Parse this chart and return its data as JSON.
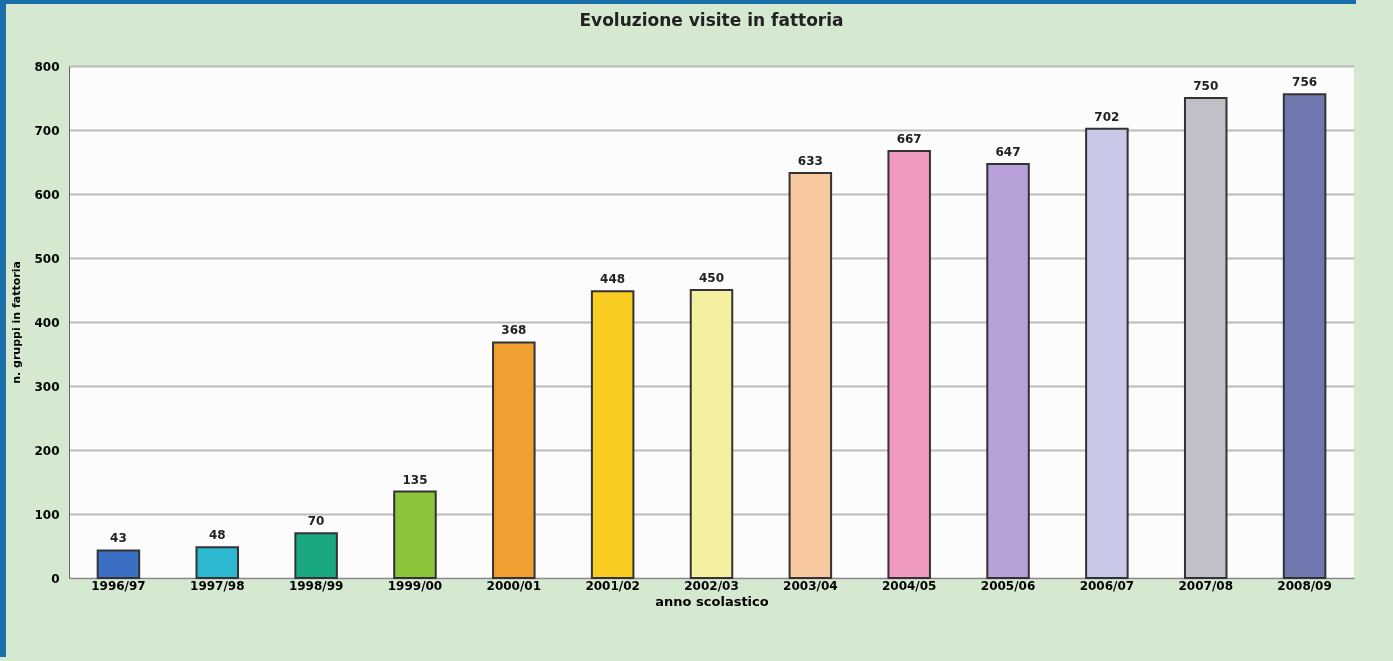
{
  "chart_data": {
    "type": "bar",
    "title": "Evoluzione visite in fattoria",
    "xlabel": "anno scolastico",
    "ylabel": "n. gruppi in fattoria",
    "categories": [
      "1996/97",
      "1997/98",
      "1998/99",
      "1999/00",
      "2000/01",
      "2001/02",
      "2002/03",
      "2003/04",
      "2004/05",
      "2005/06",
      "2006/07",
      "2007/08",
      "2008/09"
    ],
    "values": [
      43,
      48,
      70,
      135,
      368,
      448,
      450,
      633,
      667,
      647,
      702,
      750,
      756
    ],
    "colors": [
      "#3a6fc4",
      "#2bb8d0",
      "#1aa882",
      "#8cc43a",
      "#f0a030",
      "#f8cc20",
      "#f4f0a0",
      "#f8c8a0",
      "#f09ac0",
      "#b8a0d8",
      "#c8c8e8",
      "#c0c0c8",
      "#7078b0"
    ],
    "ylim": [
      0,
      800
    ],
    "yticks": [
      0,
      100,
      200,
      300,
      400,
      500,
      600,
      700,
      800
    ],
    "grid": "y",
    "data_labels": true
  }
}
